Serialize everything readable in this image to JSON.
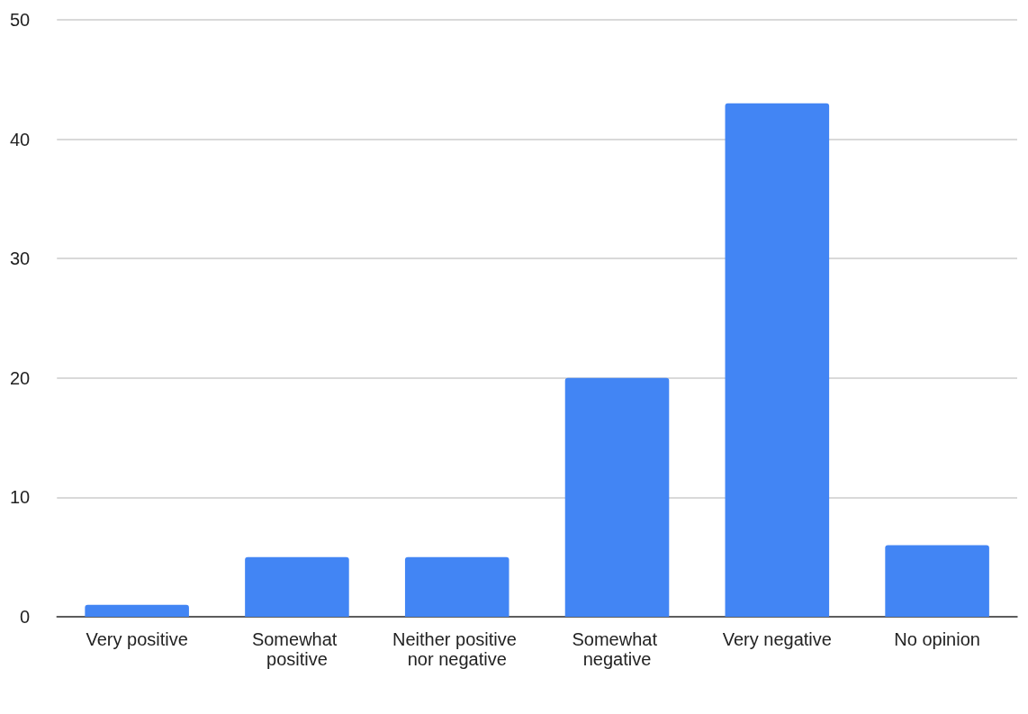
{
  "chart_data": {
    "type": "bar",
    "categories": [
      "Very positive",
      "Somewhat positive",
      "Neither positive nor negative",
      "Somewhat negative",
      "Very negative",
      "No opinion"
    ],
    "values": [
      1,
      5,
      5,
      20,
      43,
      6
    ],
    "color": "#4285f4",
    "ylim": [
      0,
      50
    ],
    "yticks": [
      0,
      10,
      20,
      30,
      40,
      50
    ],
    "grid": "y"
  }
}
